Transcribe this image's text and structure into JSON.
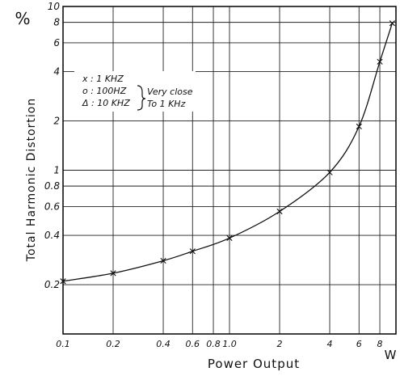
{
  "chart_data": {
    "type": "line",
    "xscale": "log",
    "yscale": "log",
    "xlim": [
      0.1,
      10
    ],
    "ylim": [
      0.1,
      10
    ],
    "ylabel": "Total Harmonic Distortion",
    "y_unit": "%",
    "xlabel": "Power Output",
    "x_unit": "W",
    "grid": true,
    "x_ticks": [
      {
        "value": 0.1,
        "label": "0.1"
      },
      {
        "value": 0.2,
        "label": "0.2"
      },
      {
        "value": 0.4,
        "label": "0.4"
      },
      {
        "value": 0.6,
        "label": "0.6"
      },
      {
        "value": 0.8,
        "label": "0.8"
      },
      {
        "value": 1.0,
        "label": "1.0"
      },
      {
        "value": 2,
        "label": "2"
      },
      {
        "value": 4,
        "label": "4"
      },
      {
        "value": 6,
        "label": "6"
      },
      {
        "value": 8,
        "label": "8"
      }
    ],
    "y_ticks": [
      {
        "value": 0.2,
        "label": "0.2"
      },
      {
        "value": 0.4,
        "label": "0.4"
      },
      {
        "value": 0.6,
        "label": "0.6"
      },
      {
        "value": 0.8,
        "label": "0.8"
      },
      {
        "value": 1,
        "label": "1"
      },
      {
        "value": 2,
        "label": "2"
      },
      {
        "value": 4,
        "label": "4"
      },
      {
        "value": 6,
        "label": "6"
      },
      {
        "value": 8,
        "label": "8"
      },
      {
        "value": 10,
        "label": "10"
      }
    ],
    "legend": [
      {
        "symbol": "x",
        "text": ": 1 KHZ"
      },
      {
        "symbol": "o",
        "text": ": 100HZ"
      },
      {
        "symbol": "Δ",
        "text": ": 10 KHZ"
      }
    ],
    "legend_note": [
      "Very close",
      "To 1 KHz"
    ],
    "legend_position": "top-left",
    "series": [
      {
        "marker": "x",
        "x": [
          0.1,
          0.2,
          0.4,
          0.6,
          1.0,
          2,
          4,
          6,
          8,
          9.5
        ],
        "y": [
          0.21,
          0.235,
          0.28,
          0.32,
          0.385,
          0.56,
          0.97,
          1.85,
          4.6,
          7.9
        ]
      }
    ]
  }
}
